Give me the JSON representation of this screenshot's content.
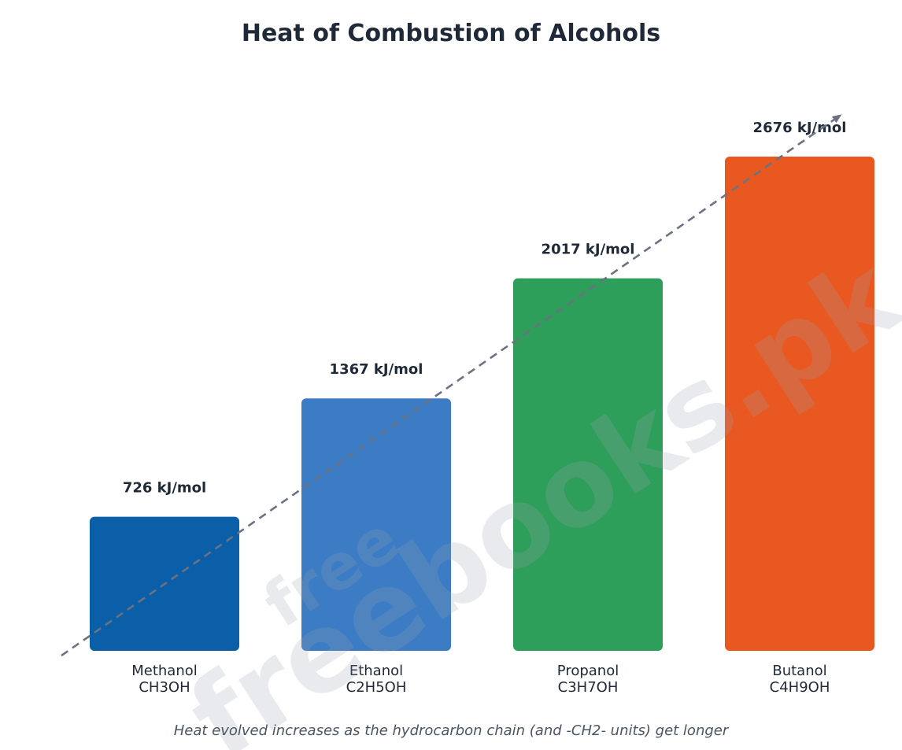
{
  "chart_data": {
    "type": "bar",
    "title": "Heat of Combustion of Alcohols",
    "categories": [
      "Methanol",
      "Ethanol",
      "Propanol",
      "Butanol"
    ],
    "formulas": [
      "CH3OH",
      "C2H5OH",
      "C3H7OH",
      "C4H9OH"
    ],
    "values": [
      726,
      1367,
      2017,
      2676
    ],
    "value_labels": [
      "726 kJ/mol",
      "1367 kJ/mol",
      "2017 kJ/mol",
      "2676 kJ/mol"
    ],
    "colors": [
      "#0b5ea8",
      "#3b7cc4",
      "#2e9e5b",
      "#e85820"
    ],
    "trend_line": {
      "style": "dashed",
      "color": "#6b7280",
      "direction": "increasing",
      "arrow": true
    },
    "ylim": [
      0,
      2676
    ],
    "grid": false,
    "legend": "none",
    "caption": "Heat evolved increases as the hydrocarbon chain (and -CH2- units) get longer"
  },
  "watermark": {
    "lines": [
      "free",
      "freebooks.pk"
    ]
  }
}
